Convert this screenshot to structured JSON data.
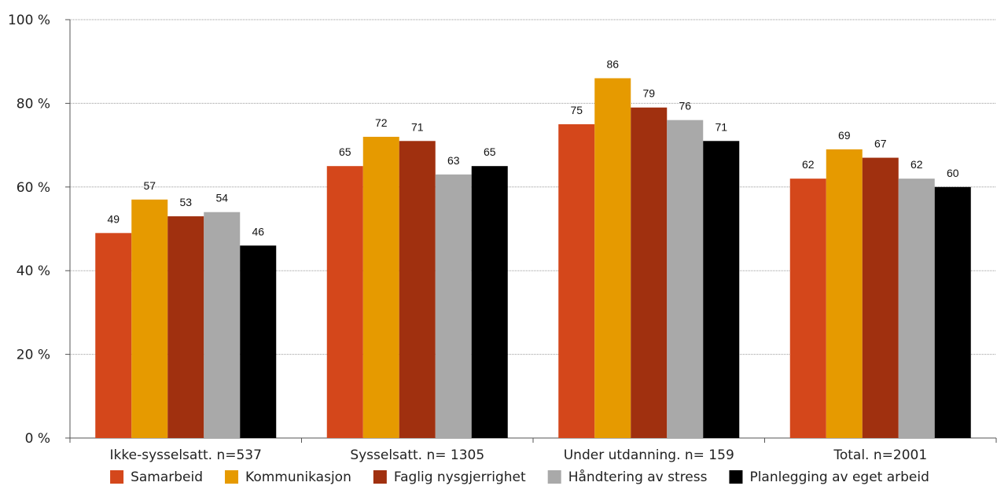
{
  "chart_data": {
    "type": "bar",
    "title": "",
    "xlabel": "",
    "ylabel": "",
    "ylim": [
      0,
      100
    ],
    "yticks": [
      0,
      20,
      40,
      60,
      80,
      100
    ],
    "ytick_labels": [
      "0 %",
      "20 %",
      "40 %",
      "60 %",
      "80 %",
      "100 %"
    ],
    "grid": true,
    "legend_position": "bottom",
    "categories": [
      "Ikke-sysselsatt. n=537",
      "Sysselsatt. n= 1305",
      "Under utdanning. n= 159",
      "Total. n=2001"
    ],
    "series": [
      {
        "name": "Samarbeid",
        "color": "#D4471B",
        "values": [
          49,
          65,
          75,
          62
        ]
      },
      {
        "name": "Kommunikasjon",
        "color": "#E69A00",
        "values": [
          57,
          72,
          86,
          69
        ]
      },
      {
        "name": "Faglig nysgjerrighet",
        "color": "#A0300F",
        "values": [
          53,
          71,
          79,
          67
        ]
      },
      {
        "name": "Håndtering av stress",
        "color": "#A9A9A9",
        "values": [
          54,
          63,
          76,
          62
        ]
      },
      {
        "name": "Planlegging av eget arbeid",
        "color": "#000000",
        "values": [
          46,
          65,
          71,
          60
        ]
      }
    ]
  }
}
